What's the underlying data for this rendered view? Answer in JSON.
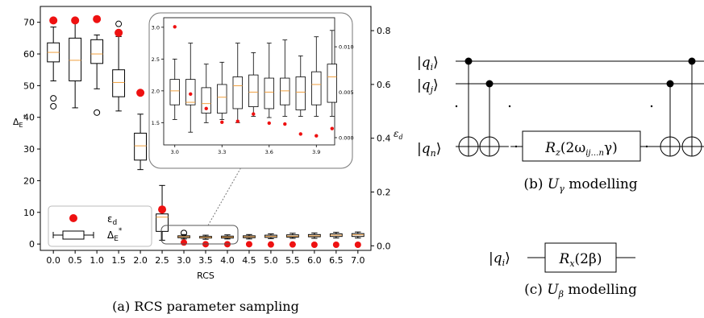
{
  "chart_data": [
    {
      "type": "box",
      "caption": "(a) RCS parameter sampling",
      "xlabel": "RCS",
      "ylabel_left": "Δ_E*",
      "ylabel_right": "ε_d",
      "categories": [
        "0.0",
        "0.5",
        "1.0",
        "1.5",
        "2.0",
        "2.5",
        "3.0",
        "3.5",
        "4.0",
        "4.5",
        "5.0",
        "5.5",
        "6.0",
        "6.5",
        "7.0"
      ],
      "ylim_left": [
        -2,
        75
      ],
      "yticks_left": [
        0,
        10,
        20,
        30,
        40,
        50,
        60,
        70
      ],
      "ylim_right": [
        -0.017,
        0.89
      ],
      "yticks_right": [
        "0.0",
        "0.2",
        "0.4",
        "0.6",
        "0.8"
      ],
      "legend": {
        "position": "lower-left",
        "entries": [
          {
            "label": "ε_d",
            "kind": "red-dot"
          },
          {
            "label": "Δ_E*",
            "kind": "box"
          }
        ]
      },
      "boxes": [
        {
          "x": "0.0",
          "whislo": 51.5,
          "q1": 57.5,
          "med": 60.5,
          "q3": 63.5,
          "whishi": 68.5,
          "fliers": [
            46,
            43.5
          ]
        },
        {
          "x": "0.5",
          "whislo": 43,
          "q1": 51.5,
          "med": 58,
          "q3": 65,
          "whishi": 71,
          "fliers": []
        },
        {
          "x": "1.0",
          "whislo": 49,
          "q1": 57,
          "med": 60,
          "q3": 64.5,
          "whishi": 66,
          "fliers": [
            41.5
          ]
        },
        {
          "x": "1.5",
          "whislo": 42,
          "q1": 46.5,
          "med": 51,
          "q3": 55,
          "whishi": 65.5,
          "fliers": [
            69.5
          ]
        },
        {
          "x": "2.0",
          "whislo": 23.5,
          "q1": 26.5,
          "med": 31,
          "q3": 35,
          "whishi": 41,
          "fliers": []
        },
        {
          "x": "2.5",
          "whislo": 1.2,
          "q1": 4,
          "med": 8.5,
          "q3": 9.5,
          "whishi": 18.5,
          "fliers": []
        },
        {
          "x": "3.0",
          "whislo": 1.6,
          "q1": 2.0,
          "med": 2.3,
          "q3": 2.6,
          "whishi": 3.0,
          "fliers": [
            3.5
          ]
        },
        {
          "x": "3.5",
          "whislo": 1.5,
          "q1": 1.9,
          "med": 2.1,
          "q3": 2.4,
          "whishi": 2.8,
          "fliers": []
        },
        {
          "x": "4.0",
          "whislo": 1.6,
          "q1": 1.9,
          "med": 2.2,
          "q3": 2.5,
          "whishi": 2.9,
          "fliers": []
        },
        {
          "x": "4.5",
          "whislo": 1.6,
          "q1": 2.0,
          "med": 2.3,
          "q3": 2.6,
          "whishi": 3.0,
          "fliers": []
        },
        {
          "x": "5.0",
          "whislo": 1.7,
          "q1": 2.1,
          "med": 2.4,
          "q3": 2.8,
          "whishi": 3.2,
          "fliers": []
        },
        {
          "x": "5.5",
          "whislo": 1.8,
          "q1": 2.2,
          "med": 2.5,
          "q3": 2.9,
          "whishi": 3.4,
          "fliers": []
        },
        {
          "x": "6.0",
          "whislo": 1.8,
          "q1": 2.3,
          "med": 2.6,
          "q3": 3.0,
          "whishi": 3.5,
          "fliers": []
        },
        {
          "x": "6.5",
          "whislo": 1.9,
          "q1": 2.4,
          "med": 2.8,
          "q3": 3.2,
          "whishi": 3.7,
          "fliers": []
        },
        {
          "x": "7.0",
          "whislo": 1.9,
          "q1": 2.4,
          "med": 2.9,
          "q3": 3.3,
          "whishi": 3.8,
          "fliers": []
        }
      ],
      "eps_d": [
        {
          "x": "0.0",
          "y": 0.838
        },
        {
          "x": "0.5",
          "y": 0.838
        },
        {
          "x": "1.0",
          "y": 0.843
        },
        {
          "x": "1.5",
          "y": 0.792
        },
        {
          "x": "2.0",
          "y": 0.569
        },
        {
          "x": "2.5",
          "y": 0.135
        },
        {
          "x": "3.0",
          "y": 0.012
        },
        {
          "x": "3.5",
          "y": 0.006
        },
        {
          "x": "4.0",
          "y": 0.006
        },
        {
          "x": "4.5",
          "y": 0.006
        },
        {
          "x": "5.0",
          "y": 0.005
        },
        {
          "x": "5.5",
          "y": 0.005
        },
        {
          "x": "6.0",
          "y": 0.004
        },
        {
          "x": "6.5",
          "y": 0.004
        },
        {
          "x": "7.0",
          "y": 0.004
        }
      ],
      "inset": {
        "xticks": [
          "3.0",
          "3.3",
          "3.6",
          "3.9"
        ],
        "xlim": [
          2.95,
          3.95
        ],
        "ylim_left": [
          1.15,
          3.15
        ],
        "yticks_left": [
          "1.5",
          "2.0",
          "2.5",
          "3.0"
        ],
        "ylim_right": [
          -0.0008,
          0.0132
        ],
        "yticks_right": [
          "0.000",
          "0.005",
          "0.010"
        ],
        "boxes": [
          {
            "x": 3.0,
            "whislo": 1.55,
            "q1": 1.78,
            "med": 2.0,
            "q3": 2.18,
            "whishi": 2.5
          },
          {
            "x": 3.1,
            "whislo": 1.35,
            "q1": 1.78,
            "med": 1.82,
            "q3": 2.18,
            "whishi": 2.75
          },
          {
            "x": 3.2,
            "whislo": 1.5,
            "q1": 1.65,
            "med": 1.8,
            "q3": 2.05,
            "whishi": 2.42
          },
          {
            "x": 3.3,
            "whislo": 1.55,
            "q1": 1.65,
            "med": 1.9,
            "q3": 2.1,
            "whishi": 2.45
          },
          {
            "x": 3.4,
            "whislo": 1.5,
            "q1": 1.72,
            "med": 2.08,
            "q3": 2.22,
            "whishi": 2.75
          },
          {
            "x": 3.5,
            "whislo": 1.6,
            "q1": 1.75,
            "med": 1.98,
            "q3": 2.25,
            "whishi": 2.6
          },
          {
            "x": 3.6,
            "whislo": 1.58,
            "q1": 1.72,
            "med": 1.98,
            "q3": 2.2,
            "whishi": 2.75
          },
          {
            "x": 3.7,
            "whislo": 1.6,
            "q1": 1.78,
            "med": 2.0,
            "q3": 2.2,
            "whishi": 2.8
          },
          {
            "x": 3.8,
            "whislo": 1.6,
            "q1": 1.7,
            "med": 1.98,
            "q3": 2.22,
            "whishi": 2.55
          },
          {
            "x": 3.9,
            "whislo": 1.6,
            "q1": 1.78,
            "med": 2.1,
            "q3": 2.3,
            "whishi": 2.85
          },
          {
            "x": 4.0,
            "whislo": 1.6,
            "q1": 1.82,
            "med": 2.22,
            "q3": 2.42,
            "whishi": 2.95
          }
        ],
        "eps_d": [
          {
            "x": 3.0,
            "y": 0.0122
          },
          {
            "x": 3.1,
            "y": 0.0048
          },
          {
            "x": 3.2,
            "y": 0.0032
          },
          {
            "x": 3.3,
            "y": 0.0017
          },
          {
            "x": 3.4,
            "y": 0.0018
          },
          {
            "x": 3.5,
            "y": 0.0026
          },
          {
            "x": 3.6,
            "y": 0.0016
          },
          {
            "x": 3.7,
            "y": 0.0015
          },
          {
            "x": 3.8,
            "y": 0.0004
          },
          {
            "x": 3.9,
            "y": 0.0002
          },
          {
            "x": 4.0,
            "y": 0.001
          }
        ]
      }
    },
    {
      "type": "diagram",
      "caption": "(b) U_γ modelling",
      "qubits": [
        "|q_i⟩",
        "|q_j⟩",
        "|q_n⟩"
      ],
      "gate": "R_z(2ω_ij…n γ)"
    },
    {
      "type": "diagram",
      "caption": "(c) U_β modelling",
      "qubits": [
        "|q_i⟩"
      ],
      "gate": "R_x(2β)"
    }
  ],
  "colors": {
    "eps": "#ee1111",
    "median": "#f0a040",
    "axis": "#000000",
    "inset_border": "#777777"
  },
  "labels": {
    "caption_a": "(a) RCS parameter sampling",
    "caption_b_pre": "(b) ",
    "caption_b_sym": "U",
    "caption_b_sub": "γ",
    "caption_b_post": " modelling",
    "caption_c_pre": "(c) ",
    "caption_c_sym": "U",
    "caption_c_sub": "β",
    "caption_c_post": " modelling",
    "xlabel": "RCS",
    "ylabel_left_base": "Δ",
    "ylabel_left_sub": "E",
    "ylabel_left_sup": "*",
    "ylabel_right_base": "ε",
    "ylabel_right_sub": "d",
    "legend_eps_base": "ε",
    "legend_eps_sub": "d",
    "legend_box_base": "Δ",
    "legend_box_sub": "E",
    "legend_box_sup": "*",
    "ket_i": "q",
    "ket_i_sub": "i",
    "ket_j": "q",
    "ket_j_sub": "j",
    "ket_n": "q",
    "ket_n_sub": "n",
    "rz_gate": "R",
    "rz_sub": "z",
    "rz_arg_pre": "(2ω",
    "rz_arg_sub": "ij…n",
    "rz_arg_post": "γ)",
    "rx_gate": "R",
    "rx_sub": "x",
    "rx_arg": "(2β)",
    "ket_c": "q",
    "ket_c_sub": "i"
  }
}
